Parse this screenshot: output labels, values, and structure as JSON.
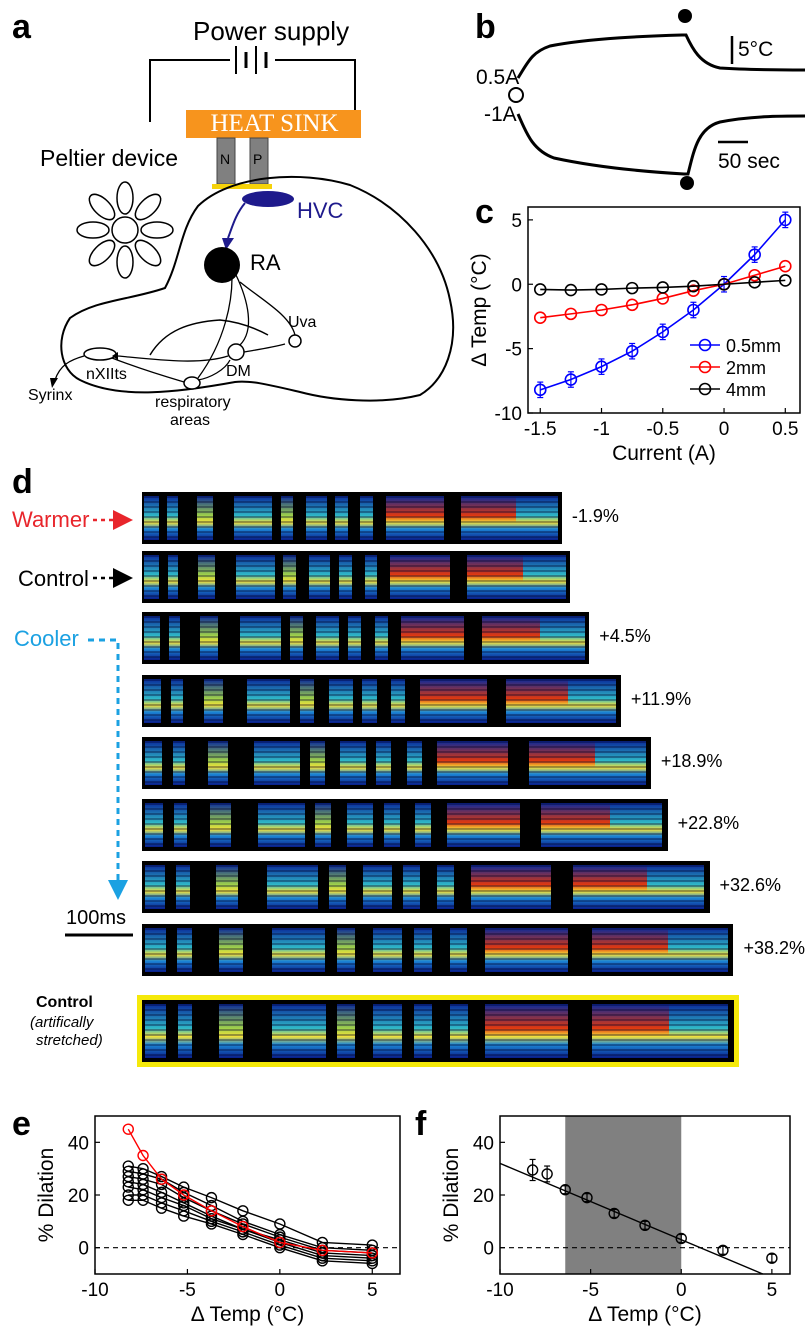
{
  "panels": {
    "a": "a",
    "b": "b",
    "c": "c",
    "d": "d",
    "e": "e",
    "f": "f"
  },
  "panel_a": {
    "power_supply": "Power supply",
    "heat_sink": "HEAT SINK",
    "peltier": "Peltier device",
    "n": "N",
    "p": "P",
    "hvc": "HVC",
    "ra": "RA",
    "uva": "Uva",
    "dm": "DM",
    "nxiits": "nXIIts",
    "syrinx": "Syrinx",
    "respiratory_1": "respiratory",
    "respiratory_2": "areas",
    "colors": {
      "heat_sink": "#f7941d",
      "hvc": "#1e1a8c",
      "peltier": "#808080",
      "contact": "#f5d20a"
    }
  },
  "panel_b": {
    "label_pos": "0.5A",
    "label_neg": "-1A",
    "scale_temp": "5°C",
    "scale_time": "50 sec"
  },
  "chart_data": [
    {
      "id": "c",
      "type": "line",
      "xlabel": "Current (A)",
      "ylabel": "Δ Temp (°C)",
      "xlim": [
        -1.6,
        0.62
      ],
      "ylim": [
        -10,
        6
      ],
      "xticks": [
        -1.5,
        -1,
        -0.5,
        0,
        0.5
      ],
      "xtick_labels": [
        "-1.5",
        "-1",
        "-0.5",
        "0",
        "0.5"
      ],
      "yticks": [
        5,
        0,
        -5,
        -10
      ],
      "ytick_labels": [
        "5",
        "0",
        "-5",
        "-10"
      ],
      "legend": "bottom-right",
      "x": [
        -1.5,
        -1.25,
        -1.0,
        -0.75,
        -0.5,
        -0.25,
        0,
        0.25,
        0.5
      ],
      "series": [
        {
          "name": "0.5mm",
          "color": "#0000ff",
          "values": [
            -8.2,
            -7.4,
            -6.4,
            -5.2,
            -3.7,
            -2.0,
            0,
            2.3,
            5.0
          ]
        },
        {
          "name": "2mm",
          "color": "#ff0000",
          "values": [
            -2.6,
            -2.3,
            -2.0,
            -1.6,
            -1.1,
            -0.5,
            0,
            0.7,
            1.4
          ]
        },
        {
          "name": "4mm",
          "color": "#000000",
          "values": [
            -0.4,
            -0.45,
            -0.4,
            -0.3,
            -0.25,
            -0.15,
            0,
            0.15,
            0.3
          ]
        }
      ]
    },
    {
      "id": "e",
      "type": "line",
      "xlabel": "Δ Temp (°C)",
      "ylabel": "% Dilation",
      "xlim": [
        -10,
        6.5
      ],
      "ylim": [
        -10,
        50
      ],
      "xticks": [
        -10,
        -5,
        0,
        5
      ],
      "xtick_labels": [
        "-10",
        "-5",
        "0",
        "5"
      ],
      "yticks": [
        40,
        20,
        0
      ],
      "ytick_labels": [
        "40",
        "20",
        "0"
      ],
      "x": [
        -8.2,
        -7.4,
        -6.4,
        -5.2,
        -3.7,
        -2.0,
        0,
        2.3,
        5.0
      ],
      "series": [
        {
          "color": "#ff0000",
          "values": [
            45,
            35,
            26,
            20,
            14,
            8,
            2,
            -1,
            -2
          ]
        },
        {
          "color": "#000000",
          "values": [
            31,
            30,
            27,
            23,
            19,
            14,
            9,
            2,
            1
          ]
        },
        {
          "color": "#000000",
          "values": [
            29,
            28,
            26,
            21,
            16,
            10,
            5,
            0,
            -1
          ]
        },
        {
          "color": "#000000",
          "values": [
            27,
            26,
            24,
            19,
            14,
            9,
            4,
            -1,
            -2
          ]
        },
        {
          "color": "#000000",
          "values": [
            25,
            24,
            21,
            17,
            12,
            7,
            3,
            -2,
            -3
          ]
        },
        {
          "color": "#000000",
          "values": [
            23,
            22,
            19,
            16,
            11,
            7,
            2,
            -3,
            -4
          ]
        },
        {
          "color": "#000000",
          "values": [
            20,
            20,
            17,
            14,
            10,
            6,
            1,
            -4,
            -5
          ]
        },
        {
          "color": "#000000",
          "values": [
            18,
            18,
            15,
            12,
            9,
            5,
            0,
            -5,
            -6
          ]
        }
      ]
    },
    {
      "id": "f",
      "type": "scatter",
      "xlabel": "Δ Temp (°C)",
      "ylabel": "% Dilation",
      "xlim": [
        -10,
        6
      ],
      "ylim": [
        -10,
        50
      ],
      "xticks": [
        -10,
        -5,
        0,
        5
      ],
      "xtick_labels": [
        "-10",
        "-5",
        "0",
        "5"
      ],
      "yticks": [
        40,
        20,
        0
      ],
      "ytick_labels": [
        "40",
        "20",
        "0"
      ],
      "shaded_x": [
        -6.4,
        0
      ],
      "fit_line": [
        [
          -10,
          32
        ],
        [
          4.5,
          -10
        ]
      ],
      "x": [
        -8.2,
        -7.4,
        -6.4,
        -5.2,
        -3.7,
        -2.0,
        0,
        2.3,
        5.0
      ],
      "values": [
        29.5,
        28,
        22,
        19,
        13,
        8.5,
        3.5,
        -1,
        -4
      ],
      "errors": [
        4,
        3,
        1.5,
        1.5,
        1.5,
        1.5,
        1.5,
        1.5,
        1.5
      ]
    }
  ],
  "panel_d": {
    "warmer": "Warmer",
    "control": "Control",
    "cooler": "Cooler",
    "scale": "100ms",
    "control_stretched_1": "Control",
    "control_stretched_2": "(artifically",
    "control_stretched_3": "stretched)",
    "rows": [
      {
        "pct": "-1.9%",
        "stretch": 0.981
      },
      {
        "pct": "",
        "stretch": 1.0
      },
      {
        "pct": "+4.5%",
        "stretch": 1.045
      },
      {
        "pct": "+11.9%",
        "stretch": 1.119
      },
      {
        "pct": "+18.9%",
        "stretch": 1.189
      },
      {
        "pct": "+22.8%",
        "stretch": 1.228
      },
      {
        "pct": "+32.6%",
        "stretch": 1.326
      },
      {
        "pct": "+38.2%",
        "stretch": 1.382
      }
    ],
    "colors": {
      "warmer": "#e8252b",
      "control": "#000000",
      "cooler": "#1ba1e2",
      "frame": "#f5e90a"
    }
  }
}
